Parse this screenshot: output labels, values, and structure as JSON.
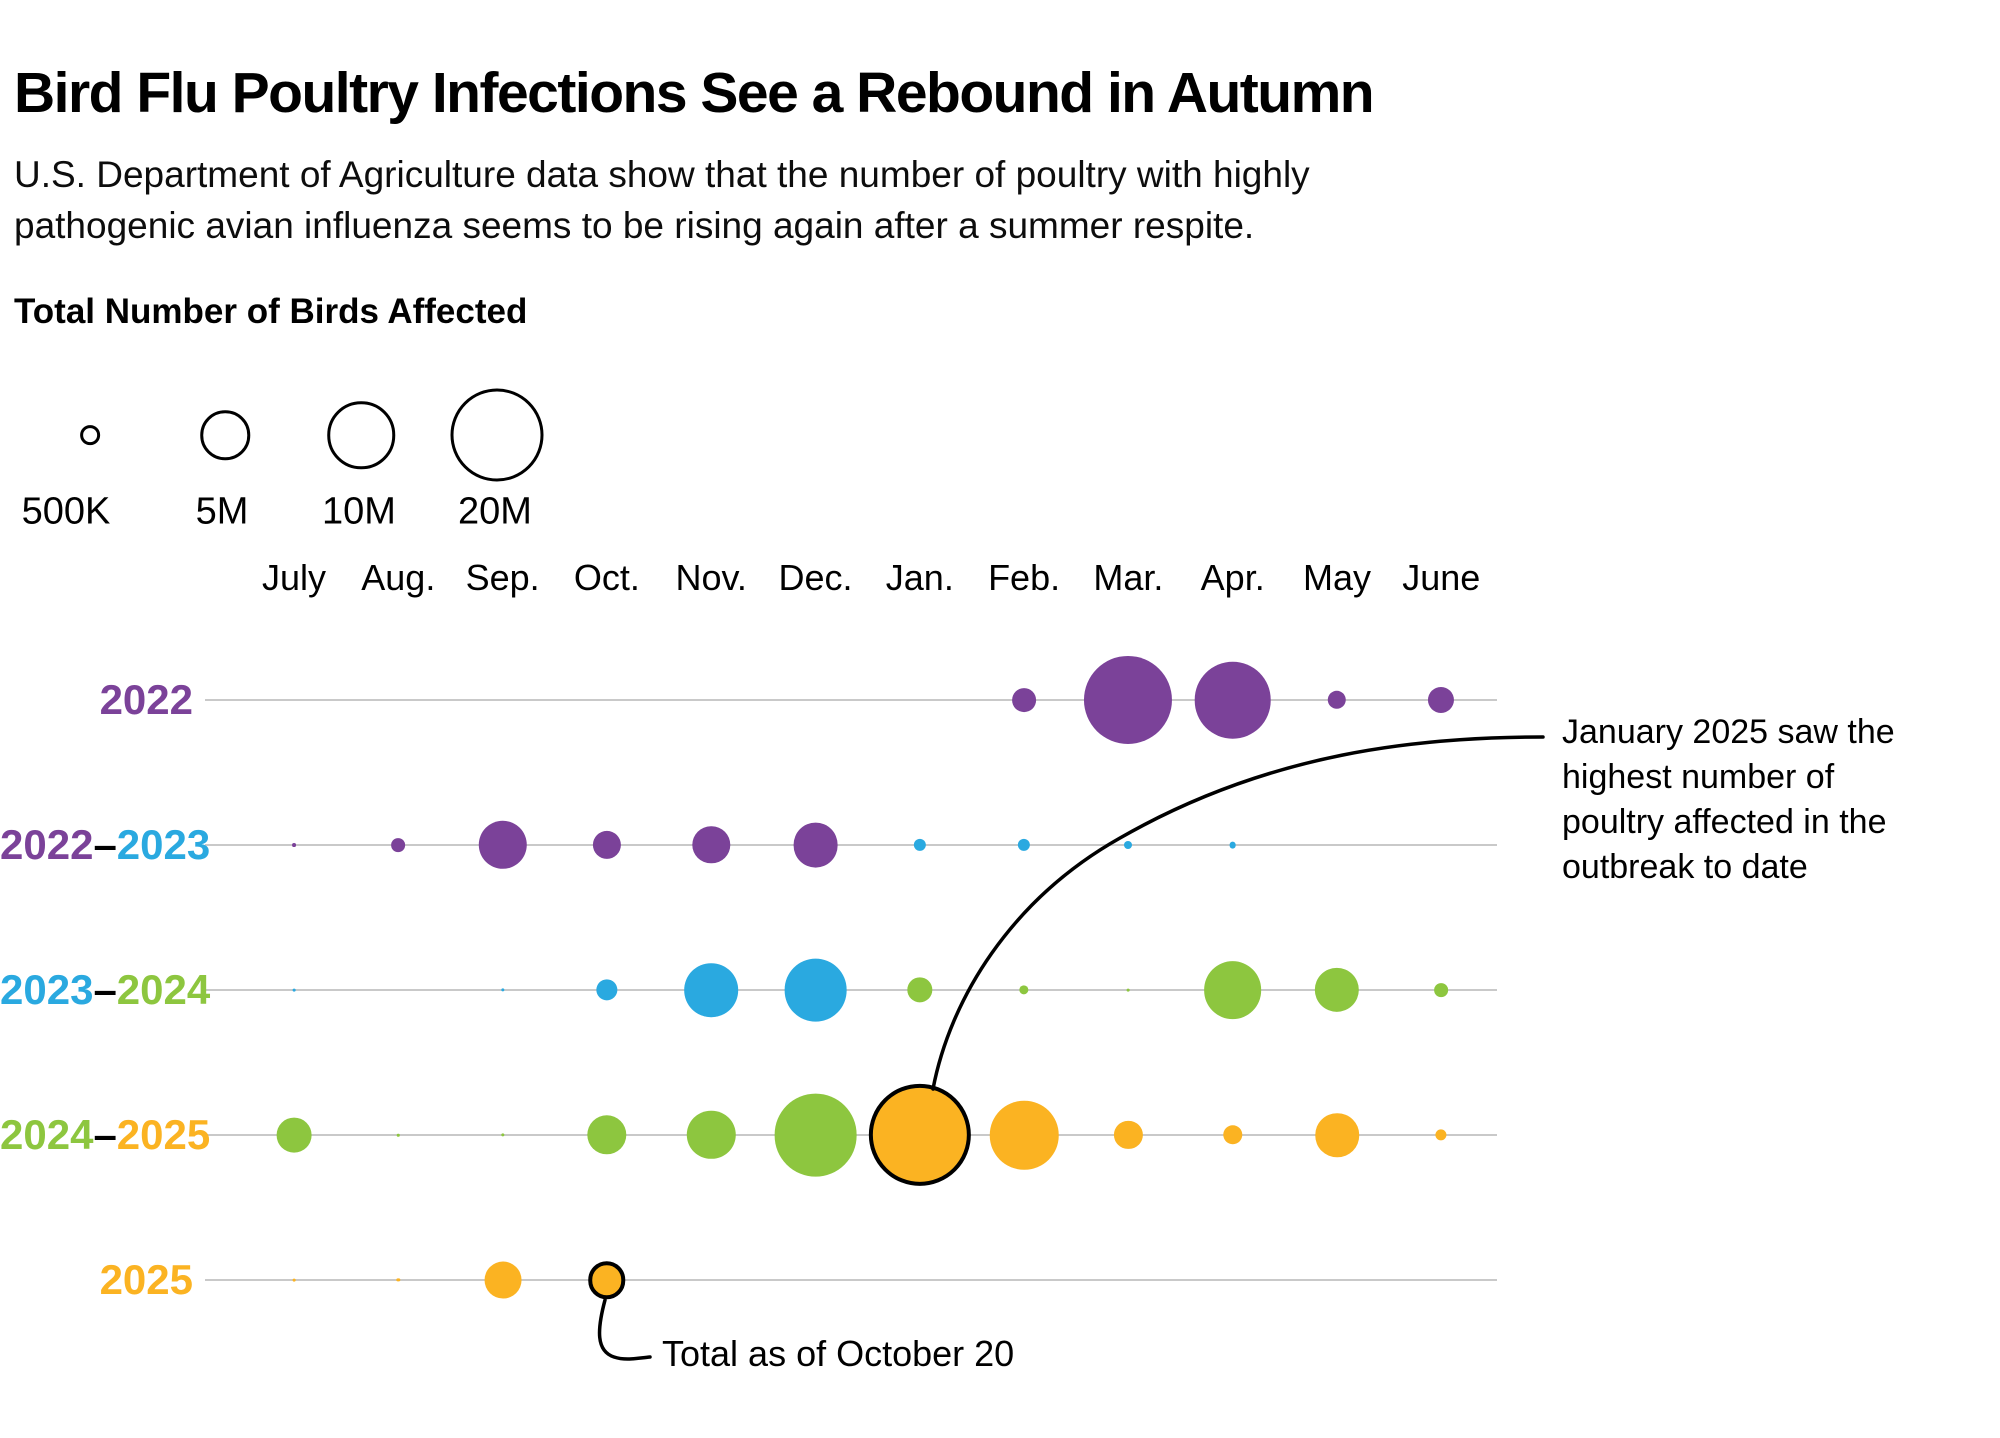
{
  "header": {
    "title": "Bird Flu Poultry Infections See a Rebound in Autumn",
    "subtitle_lines": [
      "U.S. Department of Agriculture data show that the number of poultry with highly",
      "pathogenic avian influenza seems to be rising again after a summer respite."
    ]
  },
  "colors": {
    "purple": "#7b4299",
    "blue": "#2aa9e0",
    "green": "#8dc63f",
    "orange": "#fbb322",
    "gridline": "#c9c9c9",
    "text": "#000000"
  },
  "annotations": {
    "jan2025": {
      "lines": [
        "January 2025 saw the",
        "highest number of",
        "poultry affected in the",
        "outbreak to date"
      ]
    },
    "oct2025": {
      "lines": [
        "Total as of October 20"
      ]
    }
  },
  "chart_data": {
    "type": "bubble",
    "title": "Total Number of Birds Affected",
    "unit": "millions of birds affected",
    "encoding": "circle area is proportional to number of birds affected; values estimated from bubble sizes",
    "months": [
      "July",
      "Aug.",
      "Sep.",
      "Oct.",
      "Nov.",
      "Dec.",
      "Jan.",
      "Feb.",
      "Mar.",
      "Apr.",
      "May",
      "June"
    ],
    "size_legend": [
      {
        "label": "500K",
        "value_millions": 0.5
      },
      {
        "label": "5M",
        "value_millions": 5
      },
      {
        "label": "10M",
        "value_millions": 10
      },
      {
        "label": "20M",
        "value_millions": 20
      }
    ],
    "rows": [
      {
        "season": "2022",
        "label_parts": [
          {
            "text": "2022",
            "color_key": "purple"
          }
        ],
        "points": [
          {
            "month": "Feb.",
            "value_millions": 1.5,
            "color_key": "purple"
          },
          {
            "month": "Mar.",
            "value_millions": 20.5,
            "color_key": "purple"
          },
          {
            "month": "Apr.",
            "value_millions": 15.5,
            "color_key": "purple"
          },
          {
            "month": "May",
            "value_millions": 0.9,
            "color_key": "purple"
          },
          {
            "month": "June",
            "value_millions": 1.8,
            "color_key": "purple"
          }
        ]
      },
      {
        "season": "2022-2023",
        "label_parts": [
          {
            "text": "2022",
            "color_key": "purple"
          },
          {
            "text": "–",
            "color_key": "text"
          },
          {
            "text": "2023",
            "color_key": "blue"
          }
        ],
        "points": [
          {
            "month": "July",
            "value_millions": 0.04,
            "color_key": "purple"
          },
          {
            "month": "Aug.",
            "value_millions": 0.5,
            "color_key": "purple"
          },
          {
            "month": "Sep.",
            "value_millions": 6.2,
            "color_key": "purple"
          },
          {
            "month": "Oct.",
            "value_millions": 2.1,
            "color_key": "purple"
          },
          {
            "month": "Nov.",
            "value_millions": 3.7,
            "color_key": "purple"
          },
          {
            "month": "Dec.",
            "value_millions": 5.3,
            "color_key": "purple"
          },
          {
            "month": "Jan.",
            "value_millions": 0.4,
            "color_key": "blue"
          },
          {
            "month": "Feb.",
            "value_millions": 0.4,
            "color_key": "blue"
          },
          {
            "month": "Mar.",
            "value_millions": 0.17,
            "color_key": "blue"
          },
          {
            "month": "Apr.",
            "value_millions": 0.12,
            "color_key": "blue"
          }
        ]
      },
      {
        "season": "2023-2024",
        "label_parts": [
          {
            "text": "2023",
            "color_key": "blue"
          },
          {
            "text": "–",
            "color_key": "text"
          },
          {
            "text": "2024",
            "color_key": "green"
          }
        ],
        "points": [
          {
            "month": "July",
            "value_millions": 0.02,
            "color_key": "blue"
          },
          {
            "month": "Sep.",
            "value_millions": 0.03,
            "color_key": "blue"
          },
          {
            "month": "Oct.",
            "value_millions": 1.2,
            "color_key": "blue"
          },
          {
            "month": "Nov.",
            "value_millions": 7.6,
            "color_key": "blue"
          },
          {
            "month": "Dec.",
            "value_millions": 10.4,
            "color_key": "blue"
          },
          {
            "month": "Jan.",
            "value_millions": 1.7,
            "color_key": "green"
          },
          {
            "month": "Feb.",
            "value_millions": 0.23,
            "color_key": "green"
          },
          {
            "month": "Mar.",
            "value_millions": 0.02,
            "color_key": "green"
          },
          {
            "month": "Apr.",
            "value_millions": 8.8,
            "color_key": "green"
          },
          {
            "month": "May",
            "value_millions": 5.2,
            "color_key": "green"
          },
          {
            "month": "June",
            "value_millions": 0.5,
            "color_key": "green"
          }
        ]
      },
      {
        "season": "2024-2025",
        "label_parts": [
          {
            "text": "2024",
            "color_key": "green"
          },
          {
            "text": "–",
            "color_key": "text"
          },
          {
            "text": "2025",
            "color_key": "orange"
          }
        ],
        "points": [
          {
            "month": "July",
            "value_millions": 3.2,
            "color_key": "green"
          },
          {
            "month": "Aug.",
            "value_millions": 0.015,
            "color_key": "green"
          },
          {
            "month": "Sep.",
            "value_millions": 0.03,
            "color_key": "green"
          },
          {
            "month": "Oct.",
            "value_millions": 4.1,
            "color_key": "green"
          },
          {
            "month": "Nov.",
            "value_millions": 6.2,
            "color_key": "green"
          },
          {
            "month": "Dec.",
            "value_millions": 18.1,
            "color_key": "green"
          },
          {
            "month": "Jan.",
            "value_millions": 23.5,
            "color_key": "orange",
            "ring": true,
            "note": "highest month of outbreak"
          },
          {
            "month": "Feb.",
            "value_millions": 12.4,
            "color_key": "orange"
          },
          {
            "month": "Mar.",
            "value_millions": 2.1,
            "color_key": "orange"
          },
          {
            "month": "Apr.",
            "value_millions": 1.0,
            "color_key": "orange"
          },
          {
            "month": "May",
            "value_millions": 5.0,
            "color_key": "orange"
          },
          {
            "month": "June",
            "value_millions": 0.33,
            "color_key": "orange"
          }
        ]
      },
      {
        "season": "2025",
        "label_parts": [
          {
            "text": "2025",
            "color_key": "orange"
          }
        ],
        "points": [
          {
            "month": "July",
            "value_millions": 0.02,
            "color_key": "orange"
          },
          {
            "month": "Aug.",
            "value_millions": 0.03,
            "color_key": "orange"
          },
          {
            "month": "Sep.",
            "value_millions": 3.6,
            "color_key": "orange"
          },
          {
            "month": "Oct.",
            "value_millions": 2.3,
            "color_key": "orange",
            "ring": true,
            "note": "total as of October 20"
          }
        ]
      }
    ]
  }
}
